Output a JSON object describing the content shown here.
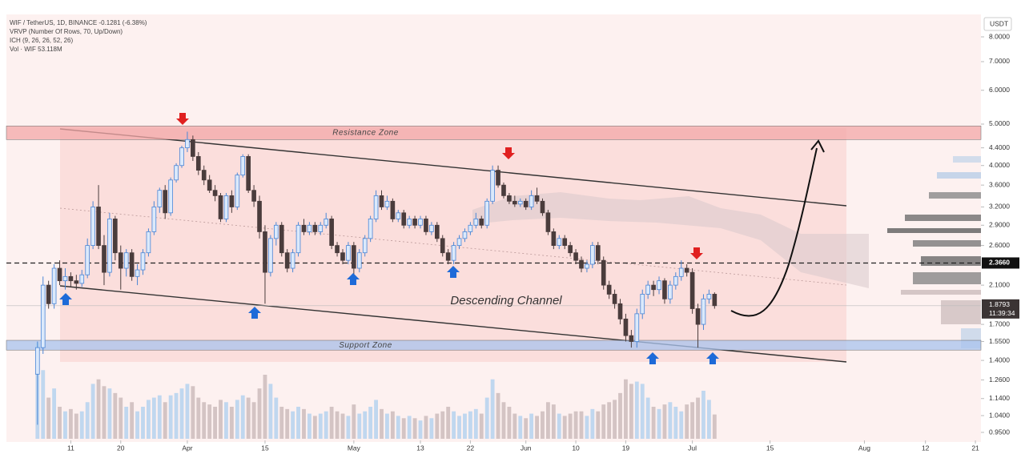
{
  "chart_data": {
    "type": "candlestick",
    "header": [
      "WIF / TetherUS, 1D, BINANCE -0.1281 (-6.38%)",
      "VRVP (Number Of Rows, 70, Up/Down)",
      "ICH (9, 26, 26, 52, 26)",
      "Vol · WIF  53.118M"
    ],
    "currency": "USDT",
    "log_scale": true,
    "ylim": [
      0.91,
      8.95
    ],
    "yticks": [
      {
        "value": 0.95,
        "label": "0.9500"
      },
      {
        "value": 1.04,
        "label": "1.0400"
      },
      {
        "value": 1.14,
        "label": "1.1400"
      },
      {
        "value": 1.26,
        "label": "1.2600"
      },
      {
        "value": 1.4,
        "label": "1.4000"
      },
      {
        "value": 1.55,
        "label": "1.5500"
      },
      {
        "value": 1.7,
        "label": "1.7000"
      },
      {
        "value": 2.1,
        "label": "2.1000"
      },
      {
        "value": 2.6,
        "label": "2.6000"
      },
      {
        "value": 2.9,
        "label": "2.9000"
      },
      {
        "value": 3.2,
        "label": "3.2000"
      },
      {
        "value": 3.6,
        "label": "3.6000"
      },
      {
        "value": 4,
        "label": "4.0000"
      },
      {
        "value": 4.4,
        "label": "4.4000"
      },
      {
        "value": 5,
        "label": "5.0000"
      },
      {
        "value": 6,
        "label": "6.0000"
      },
      {
        "value": 7,
        "label": "7.0000"
      },
      {
        "value": 8,
        "label": "8.0000"
      }
    ],
    "xlim": [
      -5.6,
      170
    ],
    "xticks": [
      {
        "value": 6,
        "label": "11"
      },
      {
        "value": 15,
        "label": "20"
      },
      {
        "value": 27,
        "label": "Apr"
      },
      {
        "value": 41,
        "label": "15"
      },
      {
        "value": 57,
        "label": "May"
      },
      {
        "value": 69,
        "label": "13"
      },
      {
        "value": 78,
        "label": "22"
      },
      {
        "value": 88,
        "label": "Jun"
      },
      {
        "value": 97,
        "label": "10"
      },
      {
        "value": 106,
        "label": "19"
      },
      {
        "value": 118,
        "label": "Jul"
      },
      {
        "value": 132,
        "label": "15"
      },
      {
        "value": 149,
        "label": "Aug"
      },
      {
        "value": 160,
        "label": "12"
      },
      {
        "value": 169,
        "label": "21"
      }
    ],
    "price_line": {
      "value": 2.366,
      "label": "2.3660"
    },
    "last_price": {
      "value": 1.8793,
      "label": "1.8793"
    },
    "countdown": "11:39:34",
    "zones": [
      {
        "text": "Resistance Zone",
        "low": 4.6,
        "high": 4.95,
        "color": "#f4a8a8"
      },
      {
        "text": "Support Zone",
        "low": 1.48,
        "high": 1.56,
        "color": "#aac4ee"
      }
    ],
    "channel_label": "Descending Channel",
    "up_color": "#4a86d6",
    "down_color": "#4a3c3c",
    "candles": [
      [
        1.3,
        1.55,
        0.99,
        1.5
      ],
      [
        1.5,
        2.2,
        1.45,
        2.1
      ],
      [
        2.1,
        2.15,
        1.85,
        1.9
      ],
      [
        1.9,
        2.35,
        1.85,
        2.3
      ],
      [
        2.3,
        2.4,
        2.1,
        2.15
      ],
      [
        2.15,
        2.3,
        2.05,
        2.2
      ],
      [
        2.2,
        2.25,
        2.08,
        2.15
      ],
      [
        2.15,
        2.22,
        2.05,
        2.12
      ],
      [
        2.12,
        2.28,
        2.08,
        2.22
      ],
      [
        2.22,
        2.7,
        2.18,
        2.6
      ],
      [
        2.6,
        3.3,
        2.55,
        3.2
      ],
      [
        3.2,
        3.6,
        2.55,
        2.6
      ],
      [
        2.6,
        2.75,
        2.1,
        2.25
      ],
      [
        2.25,
        3.1,
        2.2,
        3.0
      ],
      [
        3.0,
        3.05,
        2.4,
        2.5
      ],
      [
        2.5,
        2.6,
        2.05,
        2.3
      ],
      [
        2.3,
        2.55,
        2.2,
        2.5
      ],
      [
        2.5,
        2.55,
        2.15,
        2.2
      ],
      [
        2.2,
        2.35,
        2.1,
        2.28
      ],
      [
        2.28,
        2.55,
        2.22,
        2.5
      ],
      [
        2.5,
        2.85,
        2.45,
        2.8
      ],
      [
        2.8,
        3.3,
        2.75,
        3.2
      ],
      [
        3.2,
        3.55,
        3.1,
        3.5
      ],
      [
        3.5,
        3.6,
        3.0,
        3.1
      ],
      [
        3.1,
        3.75,
        3.05,
        3.7
      ],
      [
        3.7,
        4.05,
        3.65,
        4.0
      ],
      [
        4.0,
        4.45,
        3.95,
        4.4
      ],
      [
        4.4,
        4.8,
        4.3,
        4.6
      ],
      [
        4.6,
        4.7,
        4.1,
        4.2
      ],
      [
        4.2,
        4.3,
        3.8,
        3.9
      ],
      [
        3.9,
        4.0,
        3.6,
        3.7
      ],
      [
        3.7,
        3.8,
        3.45,
        3.5
      ],
      [
        3.5,
        3.6,
        3.3,
        3.4
      ],
      [
        3.4,
        3.45,
        2.95,
        3.0
      ],
      [
        3.0,
        3.45,
        2.95,
        3.4
      ],
      [
        3.4,
        3.5,
        3.1,
        3.2
      ],
      [
        3.2,
        3.85,
        3.15,
        3.8
      ],
      [
        3.8,
        4.25,
        3.75,
        4.2
      ],
      [
        4.2,
        4.25,
        3.45,
        3.5
      ],
      [
        3.5,
        3.6,
        3.2,
        3.3
      ],
      [
        3.3,
        3.4,
        2.7,
        2.8
      ],
      [
        2.8,
        2.9,
        1.9,
        2.25
      ],
      [
        2.25,
        2.75,
        2.2,
        2.7
      ],
      [
        2.7,
        2.95,
        2.6,
        2.9
      ],
      [
        2.9,
        2.95,
        2.45,
        2.5
      ],
      [
        2.5,
        2.55,
        2.25,
        2.3
      ],
      [
        2.3,
        2.55,
        2.25,
        2.5
      ],
      [
        2.5,
        2.95,
        2.45,
        2.9
      ],
      [
        2.9,
        3.0,
        2.75,
        2.8
      ],
      [
        2.8,
        2.95,
        2.75,
        2.9
      ],
      [
        2.9,
        2.95,
        2.75,
        2.8
      ],
      [
        2.8,
        2.95,
        2.75,
        2.9
      ],
      [
        2.9,
        3.1,
        2.85,
        3.0
      ],
      [
        3.0,
        3.05,
        2.55,
        2.6
      ],
      [
        2.6,
        2.65,
        2.45,
        2.5
      ],
      [
        2.5,
        2.55,
        2.35,
        2.4
      ],
      [
        2.4,
        2.65,
        2.35,
        2.6
      ],
      [
        2.6,
        2.65,
        2.2,
        2.3
      ],
      [
        2.3,
        2.55,
        2.25,
        2.5
      ],
      [
        2.5,
        2.75,
        2.45,
        2.7
      ],
      [
        2.7,
        3.05,
        2.65,
        3.0
      ],
      [
        3.0,
        3.5,
        2.95,
        3.4
      ],
      [
        3.4,
        3.5,
        3.15,
        3.2
      ],
      [
        3.2,
        3.4,
        3.15,
        3.3
      ],
      [
        3.3,
        3.35,
        2.95,
        3.0
      ],
      [
        3.0,
        3.15,
        2.95,
        3.1
      ],
      [
        3.1,
        3.15,
        2.85,
        2.9
      ],
      [
        2.9,
        3.05,
        2.85,
        3.0
      ],
      [
        3.0,
        3.05,
        2.85,
        2.9
      ],
      [
        2.9,
        3.05,
        2.85,
        3.0
      ],
      [
        3.0,
        3.05,
        2.75,
        2.8
      ],
      [
        2.8,
        2.95,
        2.75,
        2.9
      ],
      [
        2.9,
        2.95,
        2.65,
        2.7
      ],
      [
        2.7,
        2.75,
        2.45,
        2.5
      ],
      [
        2.5,
        2.55,
        2.35,
        2.4
      ],
      [
        2.4,
        2.65,
        2.35,
        2.6
      ],
      [
        2.6,
        2.75,
        2.55,
        2.7
      ],
      [
        2.7,
        2.85,
        2.65,
        2.8
      ],
      [
        2.8,
        2.95,
        2.75,
        2.9
      ],
      [
        2.9,
        3.1,
        2.85,
        3.0
      ],
      [
        3.0,
        3.05,
        2.85,
        2.9
      ],
      [
        2.9,
        3.35,
        2.85,
        3.3
      ],
      [
        3.3,
        4.0,
        3.25,
        3.9
      ],
      [
        3.9,
        4.0,
        3.55,
        3.6
      ],
      [
        3.6,
        3.65,
        3.35,
        3.4
      ],
      [
        3.4,
        3.45,
        3.25,
        3.3
      ],
      [
        3.3,
        3.4,
        3.2,
        3.25
      ],
      [
        3.25,
        3.35,
        3.2,
        3.3
      ],
      [
        3.3,
        3.35,
        3.15,
        3.2
      ],
      [
        3.2,
        3.5,
        3.15,
        3.4
      ],
      [
        3.4,
        3.55,
        3.25,
        3.3
      ],
      [
        3.3,
        3.35,
        3.05,
        3.1
      ],
      [
        3.1,
        3.15,
        2.75,
        2.8
      ],
      [
        2.8,
        2.85,
        2.55,
        2.6
      ],
      [
        2.6,
        2.75,
        2.55,
        2.7
      ],
      [
        2.7,
        2.75,
        2.55,
        2.6
      ],
      [
        2.6,
        2.65,
        2.45,
        2.5
      ],
      [
        2.5,
        2.55,
        2.35,
        2.4
      ],
      [
        2.4,
        2.45,
        2.25,
        2.3
      ],
      [
        2.3,
        2.4,
        2.25,
        2.35
      ],
      [
        2.35,
        2.65,
        2.3,
        2.6
      ],
      [
        2.6,
        2.65,
        2.35,
        2.4
      ],
      [
        2.4,
        2.45,
        2.05,
        2.1
      ],
      [
        2.1,
        2.15,
        1.95,
        2.0
      ],
      [
        2.0,
        2.05,
        1.85,
        1.9
      ],
      [
        1.9,
        1.95,
        1.7,
        1.75
      ],
      [
        1.75,
        1.8,
        1.55,
        1.6
      ],
      [
        1.6,
        1.65,
        1.5,
        1.55
      ],
      [
        1.55,
        1.85,
        1.5,
        1.8
      ],
      [
        1.8,
        2.05,
        1.75,
        2.0
      ],
      [
        2.0,
        2.15,
        1.95,
        2.1
      ],
      [
        2.1,
        2.15,
        1.98,
        2.05
      ],
      [
        2.05,
        2.2,
        2.0,
        2.15
      ],
      [
        2.15,
        2.18,
        1.9,
        1.95
      ],
      [
        1.95,
        2.15,
        1.9,
        2.1
      ],
      [
        2.1,
        2.25,
        2.05,
        2.2
      ],
      [
        2.2,
        2.4,
        2.15,
        2.3
      ],
      [
        2.3,
        2.35,
        2.2,
        2.25
      ],
      [
        2.25,
        2.3,
        1.8,
        1.85
      ],
      [
        1.85,
        1.9,
        1.5,
        1.7
      ],
      [
        1.7,
        2.0,
        1.65,
        1.95
      ],
      [
        1.95,
        2.05,
        1.9,
        2.0
      ],
      [
        2.0,
        2.02,
        1.85,
        1.88
      ]
    ],
    "volumes": [
      210,
      150,
      90,
      110,
      70,
      60,
      65,
      55,
      60,
      80,
      120,
      130,
      115,
      110,
      100,
      90,
      70,
      80,
      60,
      70,
      85,
      90,
      95,
      80,
      95,
      100,
      110,
      120,
      115,
      90,
      80,
      75,
      70,
      85,
      80,
      70,
      85,
      95,
      90,
      80,
      110,
      140,
      120,
      90,
      70,
      65,
      60,
      70,
      65,
      55,
      50,
      55,
      60,
      70,
      60,
      55,
      50,
      75,
      55,
      60,
      70,
      85,
      65,
      55,
      60,
      50,
      45,
      50,
      45,
      40,
      50,
      45,
      55,
      60,
      70,
      60,
      50,
      55,
      60,
      65,
      55,
      90,
      130,
      100,
      80,
      70,
      55,
      50,
      45,
      55,
      50,
      60,
      80,
      75,
      55,
      50,
      55,
      60,
      60,
      50,
      65,
      60,
      75,
      80,
      85,
      100,
      130,
      120,
      125,
      120,
      90,
      70,
      65,
      75,
      80,
      70,
      60,
      75,
      80,
      90,
      105,
      85,
      53.118
    ]
  }
}
